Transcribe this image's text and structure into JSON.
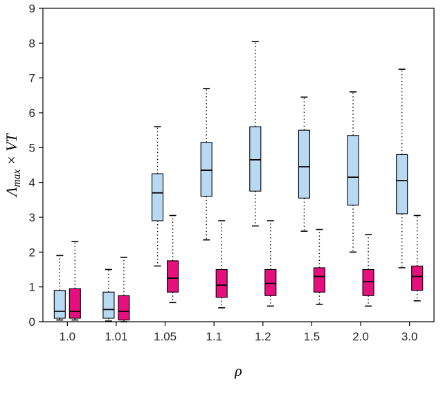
{
  "figure": {
    "title": "",
    "background": "#ffffff"
  },
  "chart_data": {
    "type": "boxplot",
    "title": "",
    "xlabel": "ρ",
    "ylabel": "Λmax × VT",
    "ylabel_parts": [
      "Λ",
      "max",
      " × VT"
    ],
    "categories": [
      "1.0",
      "1.01",
      "1.05",
      "1.1",
      "1.2",
      "1.5",
      "2.0",
      "3.0"
    ],
    "ylim": [
      0,
      9
    ],
    "yticks": [
      0,
      1,
      2,
      3,
      4,
      5,
      6,
      7,
      8,
      9
    ],
    "grid": false,
    "legend": "none",
    "colors": {
      "series_blue": "#b8d9f2",
      "series_magenta": "#e5107e",
      "box_edge": "#000000",
      "axis": "#000000",
      "tick_label": "#262626"
    },
    "series": [
      {
        "name": "blue",
        "color": "#b8d9f2",
        "boxes": [
          {
            "lo": 0.05,
            "q1": 0.1,
            "med": 0.3,
            "q3": 0.9,
            "hi": 1.9
          },
          {
            "lo": 0.02,
            "q1": 0.1,
            "med": 0.35,
            "q3": 0.85,
            "hi": 1.5
          },
          {
            "lo": 1.6,
            "q1": 2.9,
            "med": 3.7,
            "q3": 4.25,
            "hi": 5.6
          },
          {
            "lo": 2.35,
            "q1": 3.6,
            "med": 4.35,
            "q3": 5.15,
            "hi": 6.7
          },
          {
            "lo": 2.75,
            "q1": 3.75,
            "med": 4.65,
            "q3": 5.6,
            "hi": 8.05
          },
          {
            "lo": 2.6,
            "q1": 3.55,
            "med": 4.45,
            "q3": 5.5,
            "hi": 6.45
          },
          {
            "lo": 2.0,
            "q1": 3.35,
            "med": 4.15,
            "q3": 5.35,
            "hi": 6.6
          },
          {
            "lo": 1.55,
            "q1": 3.1,
            "med": 4.05,
            "q3": 4.8,
            "hi": 7.25
          }
        ]
      },
      {
        "name": "magenta",
        "color": "#e5107e",
        "boxes": [
          {
            "lo": 0.05,
            "q1": 0.1,
            "med": 0.3,
            "q3": 0.95,
            "hi": 2.3
          },
          {
            "lo": 0.0,
            "q1": 0.05,
            "med": 0.3,
            "q3": 0.75,
            "hi": 1.85
          },
          {
            "lo": 0.55,
            "q1": 0.85,
            "med": 1.25,
            "q3": 1.75,
            "hi": 3.05
          },
          {
            "lo": 0.4,
            "q1": 0.7,
            "med": 1.05,
            "q3": 1.5,
            "hi": 2.9
          },
          {
            "lo": 0.45,
            "q1": 0.75,
            "med": 1.1,
            "q3": 1.5,
            "hi": 2.9
          },
          {
            "lo": 0.5,
            "q1": 0.85,
            "med": 1.3,
            "q3": 1.55,
            "hi": 2.65
          },
          {
            "lo": 0.45,
            "q1": 0.75,
            "med": 1.15,
            "q3": 1.5,
            "hi": 2.5
          },
          {
            "lo": 0.6,
            "q1": 0.9,
            "med": 1.3,
            "q3": 1.6,
            "hi": 3.05
          }
        ]
      }
    ]
  }
}
